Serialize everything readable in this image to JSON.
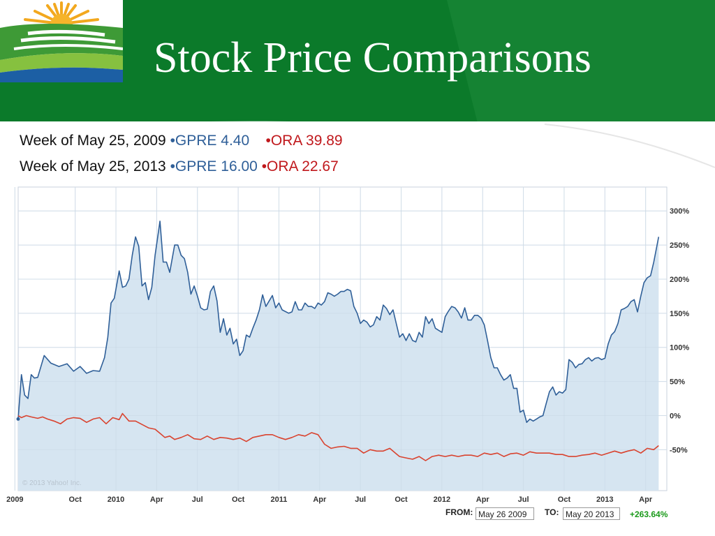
{
  "slide": {
    "title": "Stock Price Comparisons",
    "line1": {
      "prefix": "Week of May 25, 2009 ",
      "gpre": "•GPRE 4.40",
      "ora": "•ORA 39.89"
    },
    "line2": {
      "prefix": "Week of May 25, 2013 ",
      "gpre": "•GPRE 16.00",
      "ora": "•ORA 22.67"
    }
  },
  "colors": {
    "header": "#0b7a2a",
    "gpre": "#2f5f98",
    "gpre_fill": "#d6e5f1",
    "ora": "#d9432f",
    "change": "#1a9a1a"
  },
  "chart_footer": {
    "from_label": "FROM:",
    "from_value": "May 26 2009",
    "to_label": "TO:",
    "to_value": "May 20 2013",
    "change": "+263.64%",
    "copyright": "© 2013 Yahoo! Inc."
  },
  "chart_data": {
    "type": "area",
    "x_tick_labels": [
      "2009",
      "Oct",
      "2010",
      "Apr",
      "Jul",
      "Oct",
      "2011",
      "Apr",
      "Jul",
      "Oct",
      "2012",
      "Apr",
      "Jul",
      "Oct",
      "2013",
      "Apr"
    ],
    "x_ticks": [
      2009.38,
      2009.75,
      2010.0,
      2010.25,
      2010.5,
      2010.75,
      2011.0,
      2011.25,
      2011.5,
      2011.75,
      2012.0,
      2012.25,
      2012.5,
      2012.75,
      2013.0,
      2013.25
    ],
    "y_tick_labels": [
      "300%",
      "250%",
      "200%",
      "150%",
      "100%",
      "50%",
      "0%",
      "-50%"
    ],
    "y_ticks": [
      300,
      250,
      200,
      150,
      100,
      50,
      0,
      -50
    ],
    "xlim": [
      2009.4,
      2013.38
    ],
    "ylim": [
      -110,
      335
    ],
    "grid": true,
    "series": [
      {
        "name": "GPRE",
        "color": "#2f5f98",
        "fill": "#d6e5f1",
        "points": [
          [
            2009.4,
            -5
          ],
          [
            2009.42,
            60
          ],
          [
            2009.44,
            30
          ],
          [
            2009.46,
            25
          ],
          [
            2009.48,
            60
          ],
          [
            2009.5,
            55
          ],
          [
            2009.52,
            56
          ],
          [
            2009.56,
            88
          ],
          [
            2009.6,
            77
          ],
          [
            2009.65,
            72
          ],
          [
            2009.7,
            76
          ],
          [
            2009.74,
            65
          ],
          [
            2009.78,
            72
          ],
          [
            2009.82,
            62
          ],
          [
            2009.86,
            66
          ],
          [
            2009.9,
            65
          ],
          [
            2009.93,
            85
          ],
          [
            2009.95,
            115
          ],
          [
            2009.97,
            165
          ],
          [
            2009.99,
            172
          ],
          [
            2010.02,
            212
          ],
          [
            2010.04,
            188
          ],
          [
            2010.06,
            190
          ],
          [
            2010.08,
            200
          ],
          [
            2010.1,
            235
          ],
          [
            2010.12,
            262
          ],
          [
            2010.14,
            248
          ],
          [
            2010.16,
            190
          ],
          [
            2010.18,
            195
          ],
          [
            2010.2,
            170
          ],
          [
            2010.22,
            188
          ],
          [
            2010.24,
            235
          ],
          [
            2010.27,
            285
          ],
          [
            2010.29,
            225
          ],
          [
            2010.31,
            225
          ],
          [
            2010.33,
            210
          ],
          [
            2010.36,
            250
          ],
          [
            2010.38,
            250
          ],
          [
            2010.4,
            235
          ],
          [
            2010.42,
            230
          ],
          [
            2010.44,
            210
          ],
          [
            2010.46,
            178
          ],
          [
            2010.48,
            190
          ],
          [
            2010.5,
            175
          ],
          [
            2010.52,
            158
          ],
          [
            2010.54,
            155
          ],
          [
            2010.56,
            156
          ],
          [
            2010.58,
            182
          ],
          [
            2010.6,
            190
          ],
          [
            2010.62,
            168
          ],
          [
            2010.64,
            122
          ],
          [
            2010.66,
            142
          ],
          [
            2010.68,
            118
          ],
          [
            2010.7,
            128
          ],
          [
            2010.72,
            105
          ],
          [
            2010.74,
            112
          ],
          [
            2010.76,
            88
          ],
          [
            2010.78,
            95
          ],
          [
            2010.8,
            118
          ],
          [
            2010.82,
            115
          ],
          [
            2010.84,
            128
          ],
          [
            2010.86,
            140
          ],
          [
            2010.88,
            155
          ],
          [
            2010.9,
            177
          ],
          [
            2010.92,
            160
          ],
          [
            2010.94,
            168
          ],
          [
            2010.96,
            176
          ],
          [
            2010.98,
            158
          ],
          [
            2011.0,
            165
          ],
          [
            2011.02,
            155
          ],
          [
            2011.06,
            150
          ],
          [
            2011.08,
            152
          ],
          [
            2011.1,
            167
          ],
          [
            2011.12,
            155
          ],
          [
            2011.14,
            155
          ],
          [
            2011.16,
            165
          ],
          [
            2011.18,
            160
          ],
          [
            2011.2,
            160
          ],
          [
            2011.22,
            157
          ],
          [
            2011.24,
            165
          ],
          [
            2011.26,
            162
          ],
          [
            2011.28,
            167
          ],
          [
            2011.3,
            180
          ],
          [
            2011.32,
            178
          ],
          [
            2011.34,
            175
          ],
          [
            2011.36,
            178
          ],
          [
            2011.38,
            182
          ],
          [
            2011.4,
            182
          ],
          [
            2011.42,
            185
          ],
          [
            2011.44,
            183
          ],
          [
            2011.46,
            160
          ],
          [
            2011.48,
            150
          ],
          [
            2011.5,
            135
          ],
          [
            2011.52,
            140
          ],
          [
            2011.54,
            137
          ],
          [
            2011.56,
            130
          ],
          [
            2011.58,
            133
          ],
          [
            2011.6,
            145
          ],
          [
            2011.62,
            140
          ],
          [
            2011.64,
            162
          ],
          [
            2011.66,
            157
          ],
          [
            2011.68,
            148
          ],
          [
            2011.7,
            155
          ],
          [
            2011.72,
            135
          ],
          [
            2011.74,
            115
          ],
          [
            2011.76,
            120
          ],
          [
            2011.78,
            110
          ],
          [
            2011.8,
            120
          ],
          [
            2011.82,
            110
          ],
          [
            2011.84,
            108
          ],
          [
            2011.86,
            122
          ],
          [
            2011.88,
            115
          ],
          [
            2011.9,
            145
          ],
          [
            2011.92,
            135
          ],
          [
            2011.94,
            142
          ],
          [
            2011.96,
            128
          ],
          [
            2011.98,
            125
          ],
          [
            2012.0,
            122
          ],
          [
            2012.02,
            145
          ],
          [
            2012.04,
            153
          ],
          [
            2012.06,
            160
          ],
          [
            2012.08,
            158
          ],
          [
            2012.1,
            152
          ],
          [
            2012.12,
            143
          ],
          [
            2012.14,
            158
          ],
          [
            2012.16,
            140
          ],
          [
            2012.18,
            140
          ],
          [
            2012.2,
            147
          ],
          [
            2012.22,
            147
          ],
          [
            2012.24,
            143
          ],
          [
            2012.26,
            133
          ],
          [
            2012.28,
            110
          ],
          [
            2012.3,
            85
          ],
          [
            2012.32,
            70
          ],
          [
            2012.34,
            70
          ],
          [
            2012.36,
            60
          ],
          [
            2012.38,
            52
          ],
          [
            2012.4,
            55
          ],
          [
            2012.42,
            60
          ],
          [
            2012.44,
            40
          ],
          [
            2012.46,
            40
          ],
          [
            2012.48,
            5
          ],
          [
            2012.5,
            8
          ],
          [
            2012.52,
            -10
          ],
          [
            2012.54,
            -5
          ],
          [
            2012.56,
            -8
          ],
          [
            2012.58,
            -5
          ],
          [
            2012.6,
            -2
          ],
          [
            2012.62,
            0
          ],
          [
            2012.64,
            18
          ],
          [
            2012.66,
            35
          ],
          [
            2012.68,
            42
          ],
          [
            2012.7,
            30
          ],
          [
            2012.72,
            35
          ],
          [
            2012.74,
            33
          ],
          [
            2012.76,
            38
          ],
          [
            2012.78,
            82
          ],
          [
            2012.8,
            78
          ],
          [
            2012.82,
            70
          ],
          [
            2012.84,
            75
          ],
          [
            2012.86,
            76
          ],
          [
            2012.88,
            82
          ],
          [
            2012.9,
            85
          ],
          [
            2012.92,
            80
          ],
          [
            2012.94,
            84
          ],
          [
            2012.96,
            85
          ],
          [
            2012.98,
            82
          ],
          [
            2013.0,
            84
          ],
          [
            2013.02,
            105
          ],
          [
            2013.04,
            118
          ],
          [
            2013.06,
            123
          ],
          [
            2013.08,
            135
          ],
          [
            2013.1,
            155
          ],
          [
            2013.12,
            157
          ],
          [
            2013.14,
            160
          ],
          [
            2013.16,
            167
          ],
          [
            2013.18,
            170
          ],
          [
            2013.2,
            152
          ],
          [
            2013.22,
            175
          ],
          [
            2013.24,
            195
          ],
          [
            2013.26,
            202
          ],
          [
            2013.28,
            205
          ],
          [
            2013.3,
            225
          ],
          [
            2013.33,
            262
          ]
        ]
      },
      {
        "name": "ORA",
        "color": "#d9432f",
        "points": [
          [
            2009.4,
            0
          ],
          [
            2009.42,
            -3
          ],
          [
            2009.45,
            0
          ],
          [
            2009.48,
            -2
          ],
          [
            2009.52,
            -4
          ],
          [
            2009.55,
            -2
          ],
          [
            2009.58,
            -5
          ],
          [
            2009.62,
            -8
          ],
          [
            2009.66,
            -12
          ],
          [
            2009.7,
            -5
          ],
          [
            2009.74,
            -3
          ],
          [
            2009.78,
            -4
          ],
          [
            2009.82,
            -10
          ],
          [
            2009.86,
            -5
          ],
          [
            2009.9,
            -3
          ],
          [
            2009.94,
            -12
          ],
          [
            2009.98,
            -3
          ],
          [
            2010.02,
            -6
          ],
          [
            2010.04,
            3
          ],
          [
            2010.08,
            -8
          ],
          [
            2010.12,
            -8
          ],
          [
            2010.16,
            -13
          ],
          [
            2010.2,
            -18
          ],
          [
            2010.24,
            -20
          ],
          [
            2010.28,
            -28
          ],
          [
            2010.3,
            -32
          ],
          [
            2010.33,
            -30
          ],
          [
            2010.36,
            -35
          ],
          [
            2010.4,
            -32
          ],
          [
            2010.44,
            -28
          ],
          [
            2010.48,
            -34
          ],
          [
            2010.52,
            -35
          ],
          [
            2010.56,
            -30
          ],
          [
            2010.6,
            -35
          ],
          [
            2010.64,
            -32
          ],
          [
            2010.68,
            -33
          ],
          [
            2010.72,
            -35
          ],
          [
            2010.76,
            -33
          ],
          [
            2010.8,
            -38
          ],
          [
            2010.84,
            -32
          ],
          [
            2010.88,
            -30
          ],
          [
            2010.92,
            -28
          ],
          [
            2010.96,
            -28
          ],
          [
            2011.0,
            -32
          ],
          [
            2011.04,
            -35
          ],
          [
            2011.08,
            -32
          ],
          [
            2011.12,
            -28
          ],
          [
            2011.16,
            -30
          ],
          [
            2011.2,
            -25
          ],
          [
            2011.24,
            -28
          ],
          [
            2011.26,
            -35
          ],
          [
            2011.28,
            -42
          ],
          [
            2011.32,
            -48
          ],
          [
            2011.36,
            -46
          ],
          [
            2011.4,
            -45
          ],
          [
            2011.44,
            -48
          ],
          [
            2011.48,
            -48
          ],
          [
            2011.52,
            -55
          ],
          [
            2011.56,
            -50
          ],
          [
            2011.6,
            -52
          ],
          [
            2011.64,
            -52
          ],
          [
            2011.68,
            -48
          ],
          [
            2011.72,
            -56
          ],
          [
            2011.74,
            -60
          ],
          [
            2011.78,
            -62
          ],
          [
            2011.82,
            -64
          ],
          [
            2011.86,
            -60
          ],
          [
            2011.9,
            -66
          ],
          [
            2011.94,
            -60
          ],
          [
            2011.98,
            -58
          ],
          [
            2012.02,
            -60
          ],
          [
            2012.06,
            -58
          ],
          [
            2012.1,
            -60
          ],
          [
            2012.14,
            -58
          ],
          [
            2012.18,
            -58
          ],
          [
            2012.22,
            -60
          ],
          [
            2012.26,
            -55
          ],
          [
            2012.3,
            -57
          ],
          [
            2012.34,
            -55
          ],
          [
            2012.38,
            -60
          ],
          [
            2012.42,
            -56
          ],
          [
            2012.46,
            -55
          ],
          [
            2012.5,
            -58
          ],
          [
            2012.54,
            -53
          ],
          [
            2012.58,
            -55
          ],
          [
            2012.62,
            -55
          ],
          [
            2012.66,
            -55
          ],
          [
            2012.7,
            -57
          ],
          [
            2012.74,
            -57
          ],
          [
            2012.78,
            -60
          ],
          [
            2012.82,
            -60
          ],
          [
            2012.86,
            -58
          ],
          [
            2012.9,
            -57
          ],
          [
            2012.94,
            -55
          ],
          [
            2012.98,
            -58
          ],
          [
            2013.02,
            -55
          ],
          [
            2013.06,
            -52
          ],
          [
            2013.1,
            -55
          ],
          [
            2013.14,
            -52
          ],
          [
            2013.18,
            -50
          ],
          [
            2013.22,
            -55
          ],
          [
            2013.26,
            -48
          ],
          [
            2013.3,
            -50
          ],
          [
            2013.33,
            -44
          ]
        ]
      }
    ]
  }
}
